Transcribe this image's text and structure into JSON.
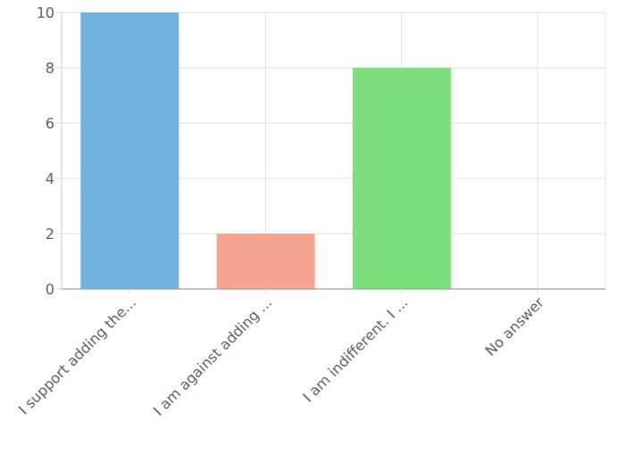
{
  "chart_data": {
    "type": "bar",
    "categories": [
      "I support adding the...",
      "I am against adding ...",
      "I am indifferent. I ...",
      "No answer"
    ],
    "values": [
      10,
      2,
      8,
      0
    ],
    "colors": [
      "#6aaedc",
      "#f4a08a",
      "#77dd77",
      "#c9cbcf"
    ],
    "ylim": [
      0,
      10
    ],
    "yticks": [
      0,
      2,
      4,
      6,
      8,
      10
    ],
    "grid": true
  }
}
